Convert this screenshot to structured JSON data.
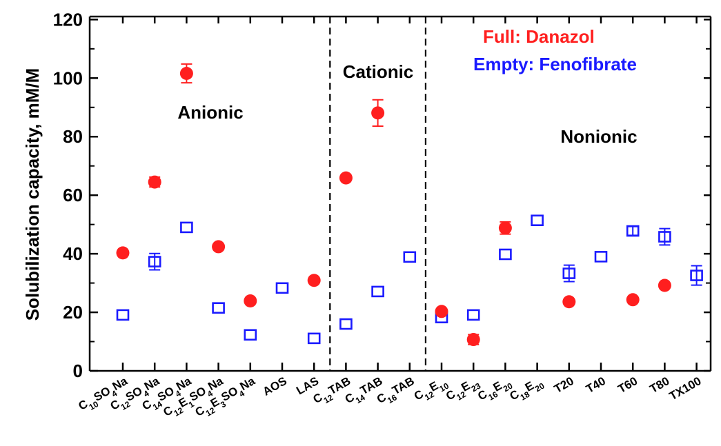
{
  "chart_data": {
    "type": "scatter",
    "ylabel": "Solubilization capacity, mM/M",
    "ylim": [
      0,
      120
    ],
    "yticks": [
      "0",
      "20",
      "40",
      "60",
      "80",
      "100",
      "120"
    ],
    "categories": [
      {
        "parts": [
          [
            "C",
            0
          ],
          [
            "10",
            1
          ],
          [
            "SO",
            0
          ],
          [
            "4",
            1
          ],
          [
            "Na",
            0
          ]
        ]
      },
      {
        "parts": [
          [
            "C",
            0
          ],
          [
            "12",
            1
          ],
          [
            "SO",
            0
          ],
          [
            "4",
            1
          ],
          [
            "Na",
            0
          ]
        ]
      },
      {
        "parts": [
          [
            "C",
            0
          ],
          [
            "14",
            1
          ],
          [
            "SO",
            0
          ],
          [
            "4",
            1
          ],
          [
            "Na",
            0
          ]
        ]
      },
      {
        "parts": [
          [
            "C",
            0
          ],
          [
            "12",
            1
          ],
          [
            "E",
            0
          ],
          [
            "1",
            1
          ],
          [
            "SO",
            0
          ],
          [
            "4",
            1
          ],
          [
            "Na",
            0
          ]
        ]
      },
      {
        "parts": [
          [
            "C",
            0
          ],
          [
            "12",
            1
          ],
          [
            "E",
            0
          ],
          [
            "3",
            1
          ],
          [
            "SO",
            0
          ],
          [
            "4",
            1
          ],
          [
            "Na",
            0
          ]
        ]
      },
      {
        "parts": [
          [
            "AOS",
            0
          ]
        ]
      },
      {
        "parts": [
          [
            "LAS",
            0
          ]
        ]
      },
      {
        "parts": [
          [
            "C",
            0
          ],
          [
            "12",
            1
          ],
          [
            "TAB",
            0
          ]
        ]
      },
      {
        "parts": [
          [
            "C",
            0
          ],
          [
            "14",
            1
          ],
          [
            "TAB",
            0
          ]
        ]
      },
      {
        "parts": [
          [
            "C",
            0
          ],
          [
            "16",
            1
          ],
          [
            "TAB",
            0
          ]
        ]
      },
      {
        "parts": [
          [
            "C",
            0
          ],
          [
            "12",
            1
          ],
          [
            "E",
            0
          ],
          [
            "10",
            1
          ]
        ]
      },
      {
        "parts": [
          [
            "C",
            0
          ],
          [
            "12",
            1
          ],
          [
            "E",
            0
          ],
          [
            "23",
            1
          ]
        ]
      },
      {
        "parts": [
          [
            "C",
            0
          ],
          [
            "16",
            1
          ],
          [
            "E",
            0
          ],
          [
            "20",
            1
          ]
        ]
      },
      {
        "parts": [
          [
            "C",
            0
          ],
          [
            "18",
            1
          ],
          [
            "E",
            0
          ],
          [
            "20",
            1
          ]
        ]
      },
      {
        "parts": [
          [
            "T20",
            0
          ]
        ]
      },
      {
        "parts": [
          [
            "T40",
            0
          ]
        ]
      },
      {
        "parts": [
          [
            "T60",
            0
          ]
        ]
      },
      {
        "parts": [
          [
            "T80",
            0
          ]
        ]
      },
      {
        "parts": [
          [
            "TX100",
            0
          ]
        ]
      }
    ],
    "series": [
      {
        "name": "Danazol",
        "marker": "filled-circle",
        "color": "#ff1f1f",
        "points": [
          {
            "i": 0,
            "y": 40.3
          },
          {
            "i": 1,
            "y": 64.5,
            "err": 1.7
          },
          {
            "i": 2,
            "y": 101.6,
            "err": 3.2
          },
          {
            "i": 3,
            "y": 42.4
          },
          {
            "i": 4,
            "y": 23.9
          },
          {
            "i": 6,
            "y": 30.9
          },
          {
            "i": 7,
            "y": 65.9
          },
          {
            "i": 8,
            "y": 88.1,
            "err": 4.5
          },
          {
            "i": 10,
            "y": 20.3
          },
          {
            "i": 11,
            "y": 10.7,
            "err": 1.7
          },
          {
            "i": 12,
            "y": 48.8,
            "err": 2.1
          },
          {
            "i": 14,
            "y": 23.6
          },
          {
            "i": 16,
            "y": 24.3
          },
          {
            "i": 17,
            "y": 29.2
          }
        ]
      },
      {
        "name": "Fenofibrate",
        "marker": "open-square",
        "color": "#1a1aff",
        "points": [
          {
            "i": 0,
            "y": 19.1
          },
          {
            "i": 1,
            "y": 37.3,
            "err": 2.8
          },
          {
            "i": 2,
            "y": 49.0
          },
          {
            "i": 3,
            "y": 21.5
          },
          {
            "i": 4,
            "y": 12.3
          },
          {
            "i": 5,
            "y": 28.3
          },
          {
            "i": 6,
            "y": 11.1
          },
          {
            "i": 7,
            "y": 16.0
          },
          {
            "i": 8,
            "y": 27.1
          },
          {
            "i": 9,
            "y": 38.9
          },
          {
            "i": 10,
            "y": 18.2
          },
          {
            "i": 11,
            "y": 19.1
          },
          {
            "i": 12,
            "y": 39.8
          },
          {
            "i": 13,
            "y": 51.4
          },
          {
            "i": 14,
            "y": 33.3,
            "err": 2.8
          },
          {
            "i": 15,
            "y": 39.0
          },
          {
            "i": 16,
            "y": 47.8,
            "err": 1.5
          },
          {
            "i": 17,
            "y": 45.8,
            "err": 2.8
          },
          {
            "i": 18,
            "y": 32.6,
            "err": 3.3
          }
        ]
      }
    ],
    "dividers_after": [
      6,
      9
    ],
    "group_labels": [
      "Anionic",
      "Cationic",
      "Nonionic"
    ],
    "legend": {
      "danazol": "Full: Danazol",
      "fenofibrate": "Empty: Fenofibrate"
    }
  }
}
